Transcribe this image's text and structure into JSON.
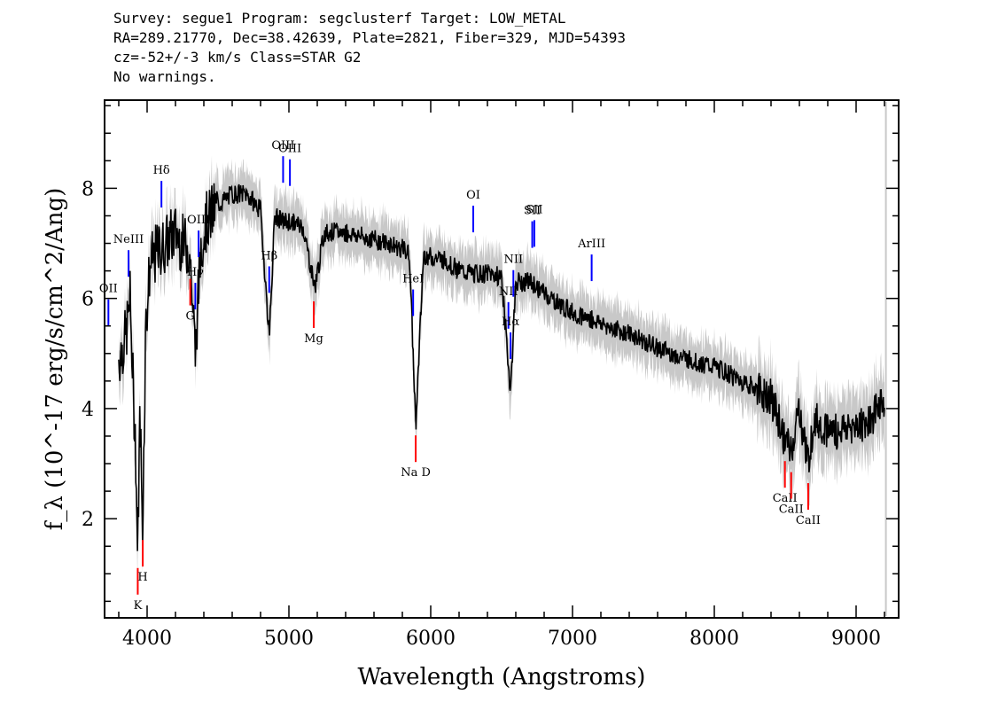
{
  "header": {
    "line1": "Survey: segue1 Program: segclusterf Target: LOW_METAL",
    "line2": "RA=289.21770, Dec=38.42639, Plate=2821, Fiber=329, MJD=54393",
    "line3": "cz=-52+/-3 km/s Class=STAR G2",
    "line4": "No warnings."
  },
  "chart_data": {
    "type": "line",
    "title": "",
    "xlabel": "Wavelength (Angstroms)",
    "ylabel": "f_λ (10^-17 erg/s/cm^2/Ang)",
    "xlim": [
      3700,
      9300
    ],
    "ylim": [
      0.2,
      9.6
    ],
    "x_ticks": [
      4000,
      5000,
      6000,
      7000,
      8000,
      9000
    ],
    "y_ticks": [
      2,
      4,
      6,
      8
    ],
    "grid": false,
    "series": [
      {
        "color": "#000000",
        "x": [
          3800,
          3850,
          3880,
          3900,
          3920,
          3933,
          3950,
          3968,
          3990,
          4020,
          4060,
          4101,
          4130,
          4200,
          4250,
          4300,
          4340,
          4380,
          4420,
          4500,
          4600,
          4700,
          4800,
          4861,
          4900,
          4950,
          5000,
          5100,
          5167,
          5183,
          5250,
          5400,
          5550,
          5700,
          5800,
          5850,
          5890,
          5896,
          5950,
          6000,
          6100,
          6200,
          6300,
          6400,
          6500,
          6563,
          6600,
          6700,
          6800,
          6900,
          7000,
          7200,
          7400,
          7600,
          7800,
          8000,
          8200,
          8400,
          8498,
          8542,
          8600,
          8662,
          8700,
          8800,
          8900,
          9000,
          9100,
          9200
        ],
        "values": [
          4.9,
          5.3,
          6.0,
          4.5,
          3.2,
          1.3,
          4.0,
          1.8,
          5.5,
          6.6,
          6.8,
          6.9,
          7.0,
          7.2,
          7.0,
          6.9,
          5.0,
          7.0,
          7.4,
          7.7,
          7.9,
          7.9,
          7.6,
          5.3,
          7.5,
          7.4,
          7.4,
          7.3,
          6.4,
          6.2,
          7.2,
          7.2,
          7.1,
          7.0,
          6.9,
          6.8,
          4.0,
          3.8,
          6.8,
          6.75,
          6.7,
          6.5,
          6.45,
          6.45,
          6.4,
          4.3,
          6.3,
          6.3,
          6.1,
          5.9,
          5.75,
          5.55,
          5.35,
          5.1,
          4.9,
          4.75,
          4.5,
          4.2,
          3.4,
          3.2,
          4.0,
          3.0,
          3.8,
          3.6,
          3.6,
          3.7,
          3.8,
          4.2
        ]
      }
    ],
    "error_band_color": "#c8c8c8",
    "line_colors": {
      "emission": "#0000ff",
      "absorption": "#ff0000"
    },
    "emission_lines": [
      {
        "label": "OII",
        "wavelength": 3727
      },
      {
        "label": "NeIII",
        "wavelength": 3869
      },
      {
        "label": "Hδ",
        "wavelength": 4101
      },
      {
        "label": "Hγ",
        "wavelength": 4340
      },
      {
        "label": "OIII",
        "wavelength": 4363
      },
      {
        "label": "Hβ",
        "wavelength": 4861
      },
      {
        "label": "OIII",
        "wavelength": 4959
      },
      {
        "label": "OIII",
        "wavelength": 5007
      },
      {
        "label": "HeI",
        "wavelength": 5876
      },
      {
        "label": "OI",
        "wavelength": 6300
      },
      {
        "label": "NII",
        "wavelength": 6548
      },
      {
        "label": "Hα",
        "wavelength": 6563
      },
      {
        "label": "NII",
        "wavelength": 6583
      },
      {
        "label": "SII",
        "wavelength": 6716
      },
      {
        "label": "SII",
        "wavelength": 6731
      },
      {
        "label": "ArIII",
        "wavelength": 7135
      }
    ],
    "absorption_lines": [
      {
        "label": "K",
        "wavelength": 3934
      },
      {
        "label": "H",
        "wavelength": 3969
      },
      {
        "label": "G",
        "wavelength": 4304
      },
      {
        "label": "Mg",
        "wavelength": 5175
      },
      {
        "label": "Na D",
        "wavelength": 5894
      },
      {
        "label": "CaII",
        "wavelength": 8498
      },
      {
        "label": "CaII",
        "wavelength": 8542
      },
      {
        "label": "CaII",
        "wavelength": 8662
      }
    ]
  }
}
